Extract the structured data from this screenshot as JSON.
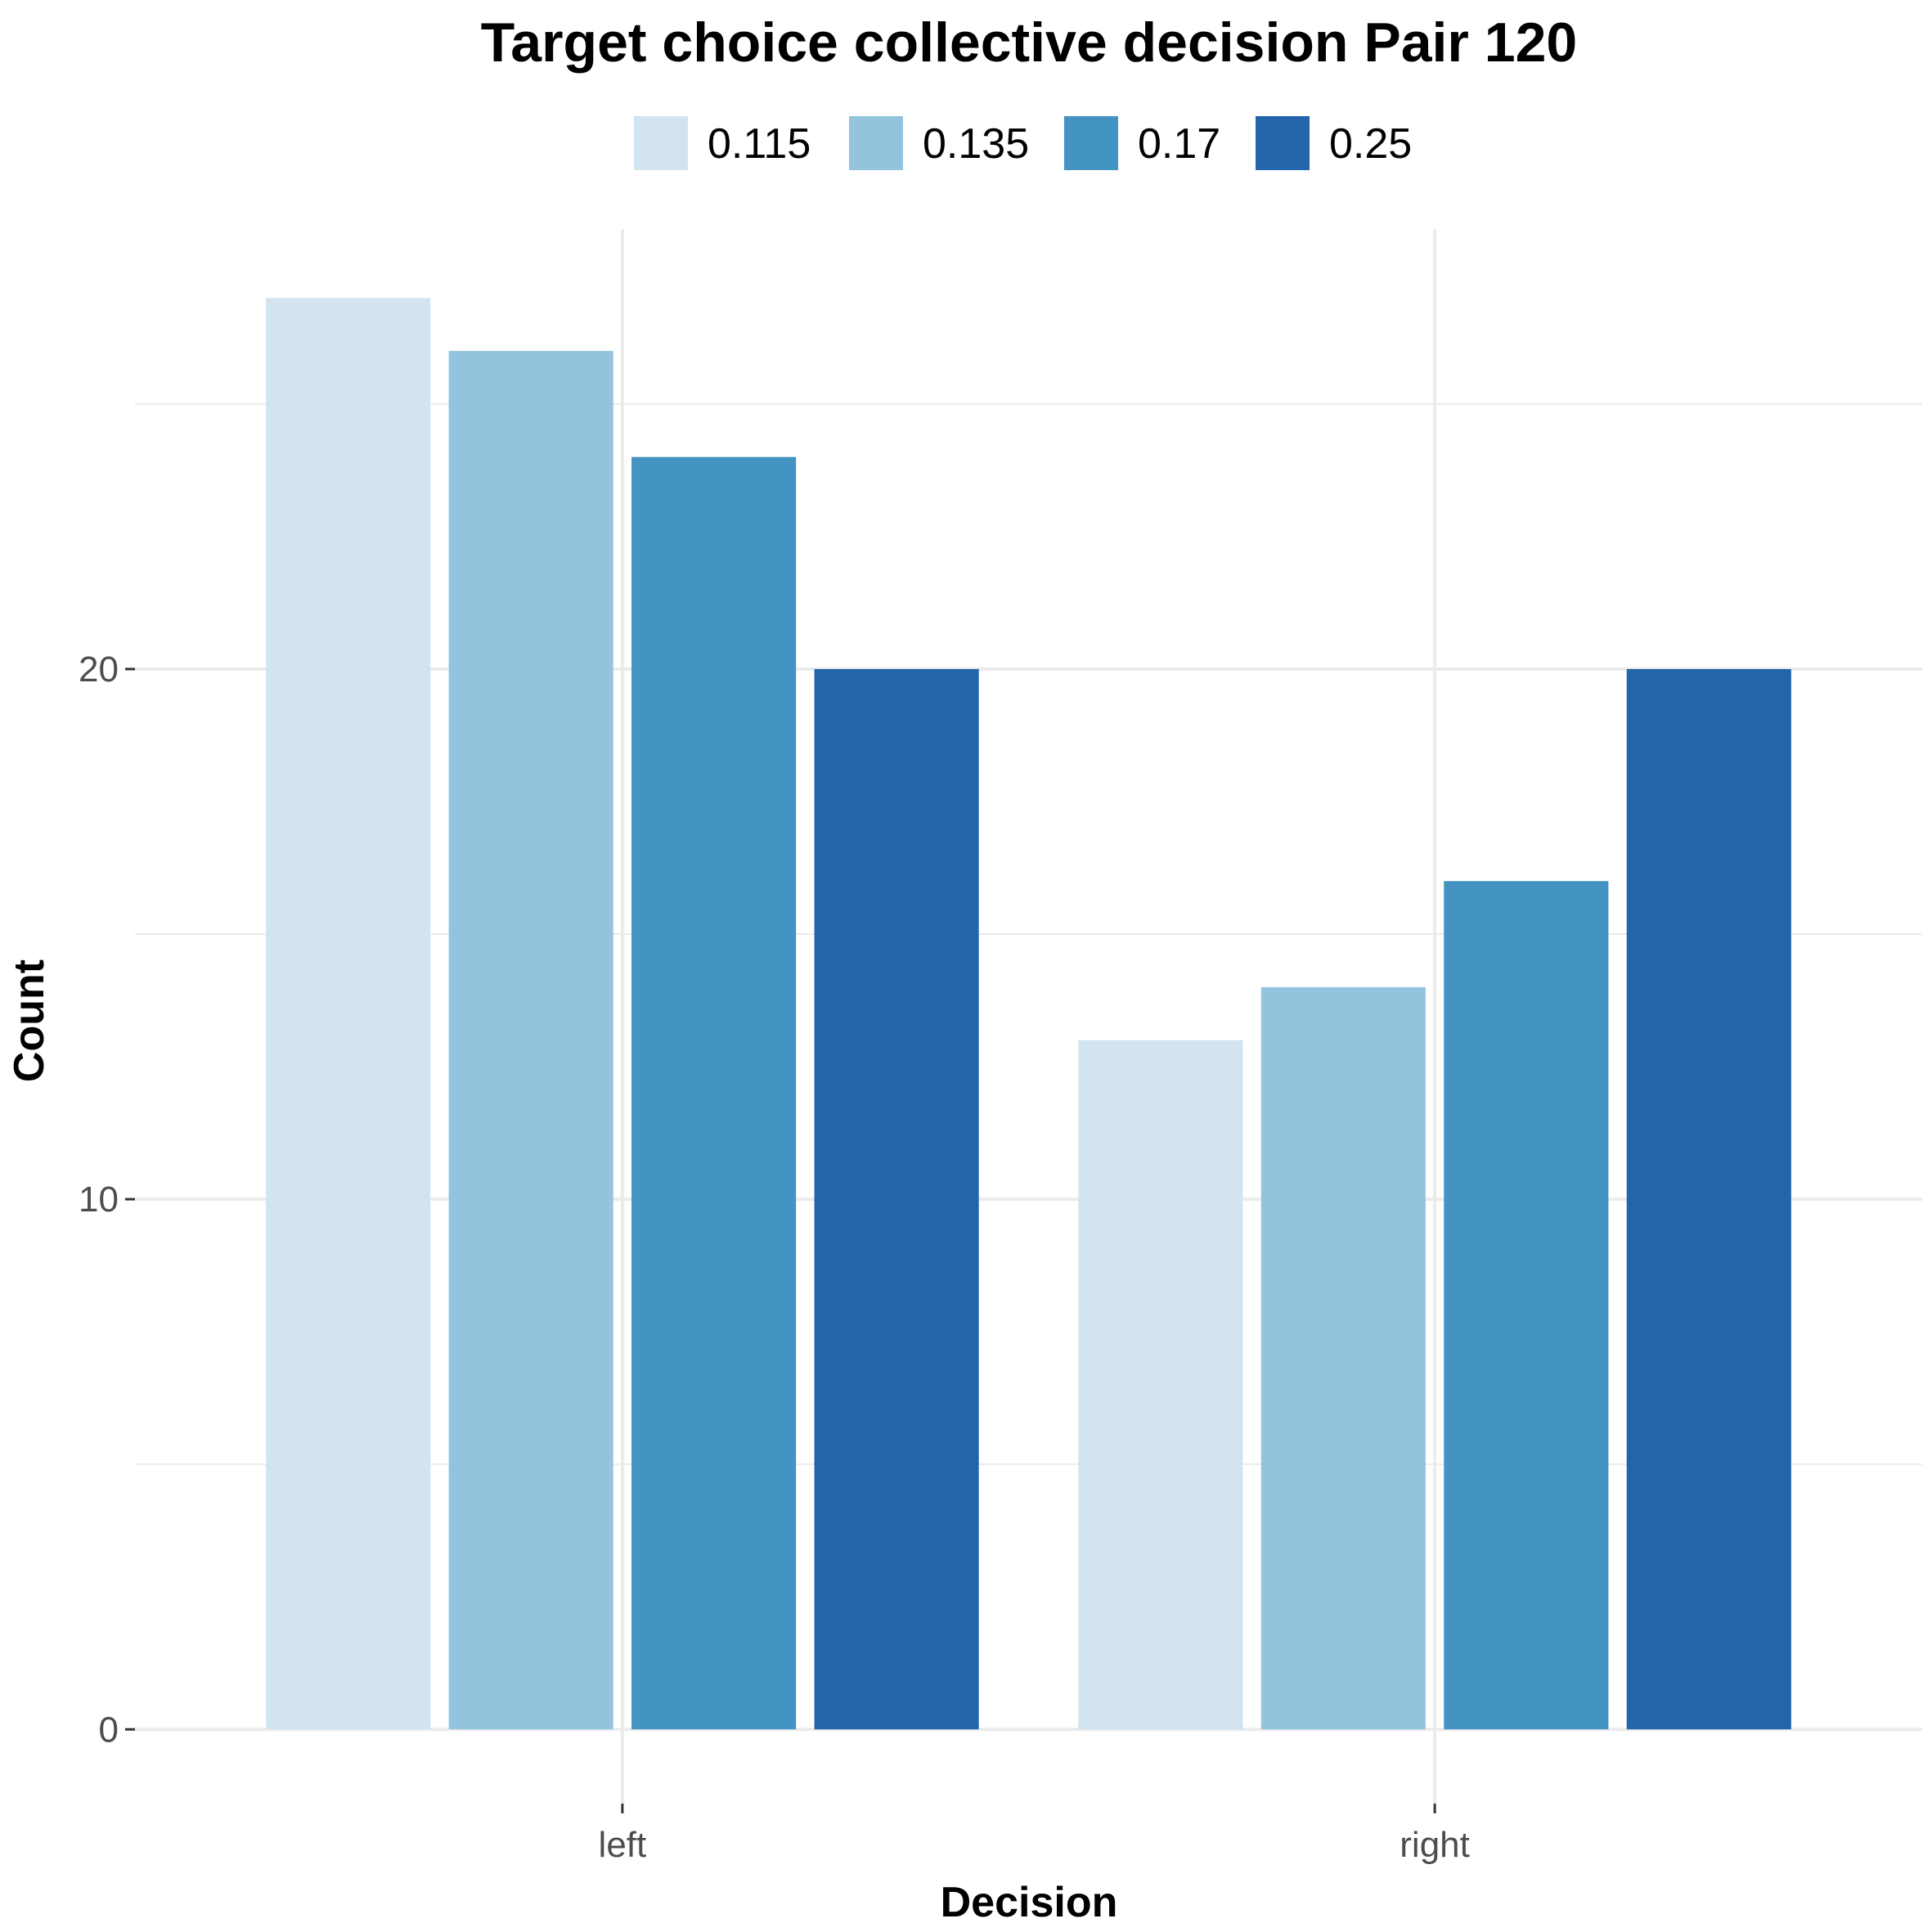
{
  "chart_data": {
    "type": "bar",
    "title": "Target choice collective decision Pair 120",
    "xlabel": "Decision",
    "ylabel": "Count",
    "categories": [
      "left",
      "right"
    ],
    "series": [
      {
        "name": "0.115",
        "color": "#d2e4f0",
        "values": [
          27,
          13
        ]
      },
      {
        "name": "0.135",
        "color": "#94c4dd",
        "values": [
          26,
          14
        ]
      },
      {
        "name": "0.17",
        "color": "#4393c3",
        "values": [
          24,
          16
        ]
      },
      {
        "name": "0.25",
        "color": "#2265aa",
        "values": [
          20,
          20
        ]
      }
    ],
    "yticks": [
      0,
      10,
      20
    ],
    "ylim": [
      -1.4,
      28.3
    ],
    "grid": true,
    "legend_position": "top"
  }
}
